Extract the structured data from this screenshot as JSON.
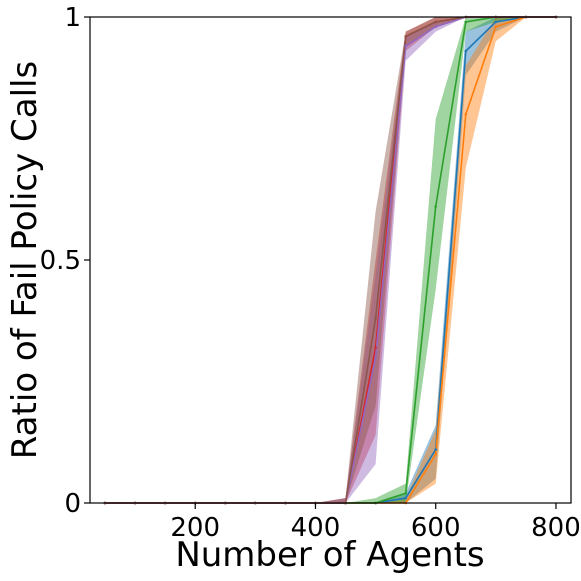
{
  "chart_data": {
    "type": "line",
    "title": "",
    "xlabel": "Number of Agents",
    "ylabel": "Ratio of Fail Policy Calls",
    "xlim": [
      25,
      825
    ],
    "ylim": [
      0,
      1
    ],
    "x_ticks": [
      200,
      400,
      600,
      800
    ],
    "x_tick_labels": [
      "200",
      "400",
      "600",
      "800"
    ],
    "y_ticks": [
      0,
      0.5,
      1
    ],
    "y_tick_labels": [
      "0",
      "0.5",
      "1"
    ],
    "grid": false,
    "legend": "none",
    "x": [
      50,
      100,
      150,
      200,
      250,
      300,
      350,
      400,
      450,
      500,
      550,
      600,
      650,
      700,
      750,
      800
    ],
    "series": [
      {
        "color": "#1f77b4",
        "values": [
          0,
          0,
          0,
          0,
          0,
          0,
          0,
          0,
          0,
          0,
          0.01,
          0.11,
          0.93,
          0.99,
          1,
          1
        ],
        "lower": [
          0,
          0,
          0,
          0,
          0,
          0,
          0,
          0,
          0,
          0,
          0,
          0.05,
          0.88,
          0.97,
          1,
          1
        ],
        "upper": [
          0,
          0,
          0,
          0,
          0,
          0,
          0,
          0,
          0,
          0,
          0.02,
          0.16,
          0.97,
          1,
          1,
          1
        ]
      },
      {
        "color": "#ff7f0e",
        "values": [
          0,
          0,
          0,
          0,
          0,
          0,
          0,
          0,
          0,
          0,
          0,
          0.1,
          0.8,
          0.98,
          1,
          1
        ],
        "lower": [
          0,
          0,
          0,
          0,
          0,
          0,
          0,
          0,
          0,
          0,
          0,
          0.04,
          0.69,
          0.95,
          1,
          1
        ],
        "upper": [
          0,
          0,
          0,
          0,
          0,
          0,
          0,
          0,
          0,
          0,
          0.01,
          0.15,
          0.9,
          1,
          1,
          1
        ]
      },
      {
        "color": "#2ca02c",
        "values": [
          0,
          0,
          0,
          0,
          0,
          0,
          0,
          0,
          0,
          0,
          0.02,
          0.61,
          0.99,
          1,
          1,
          1
        ],
        "lower": [
          0,
          0,
          0,
          0,
          0,
          0,
          0,
          0,
          0,
          0,
          0,
          0.44,
          0.97,
          0.99,
          1,
          1
        ],
        "upper": [
          0,
          0,
          0,
          0,
          0,
          0,
          0,
          0,
          0,
          0.01,
          0.04,
          0.79,
          1,
          1,
          1,
          1
        ]
      },
      {
        "color": "#d62728",
        "values": [
          0,
          0,
          0,
          0,
          0,
          0,
          0,
          0,
          0,
          0.32,
          0.96,
          0.99,
          1,
          1,
          1,
          1
        ],
        "lower": [
          0,
          0,
          0,
          0,
          0,
          0,
          0,
          0,
          0,
          0.14,
          0.93,
          0.98,
          1,
          1,
          1,
          1
        ],
        "upper": [
          0,
          0,
          0,
          0,
          0,
          0,
          0,
          0,
          0.01,
          0.5,
          0.97,
          1,
          1,
          1,
          1,
          1
        ]
      },
      {
        "color": "#9467bd",
        "values": [
          0,
          0,
          0,
          0,
          0,
          0,
          0,
          0,
          0,
          0.3,
          0.94,
          0.98,
          1,
          1,
          1,
          1
        ],
        "lower": [
          0,
          0,
          0,
          0,
          0,
          0,
          0,
          0,
          0,
          0.08,
          0.91,
          0.97,
          1,
          1,
          1,
          1
        ],
        "upper": [
          0,
          0,
          0,
          0,
          0,
          0,
          0,
          0,
          0.01,
          0.47,
          0.96,
          0.99,
          1,
          1,
          1,
          1
        ]
      },
      {
        "color": "#8c564b",
        "values": [
          0,
          0,
          0,
          0,
          0,
          0,
          0,
          0,
          0,
          0.38,
          0.96,
          0.99,
          1,
          1,
          1,
          1
        ],
        "lower": [
          0,
          0,
          0,
          0,
          0,
          0,
          0,
          0,
          0,
          0.2,
          0.94,
          0.98,
          1,
          1,
          1,
          1
        ],
        "upper": [
          0,
          0,
          0,
          0,
          0,
          0,
          0,
          0,
          0.01,
          0.6,
          0.97,
          1,
          1,
          1,
          1,
          1
        ]
      }
    ]
  }
}
